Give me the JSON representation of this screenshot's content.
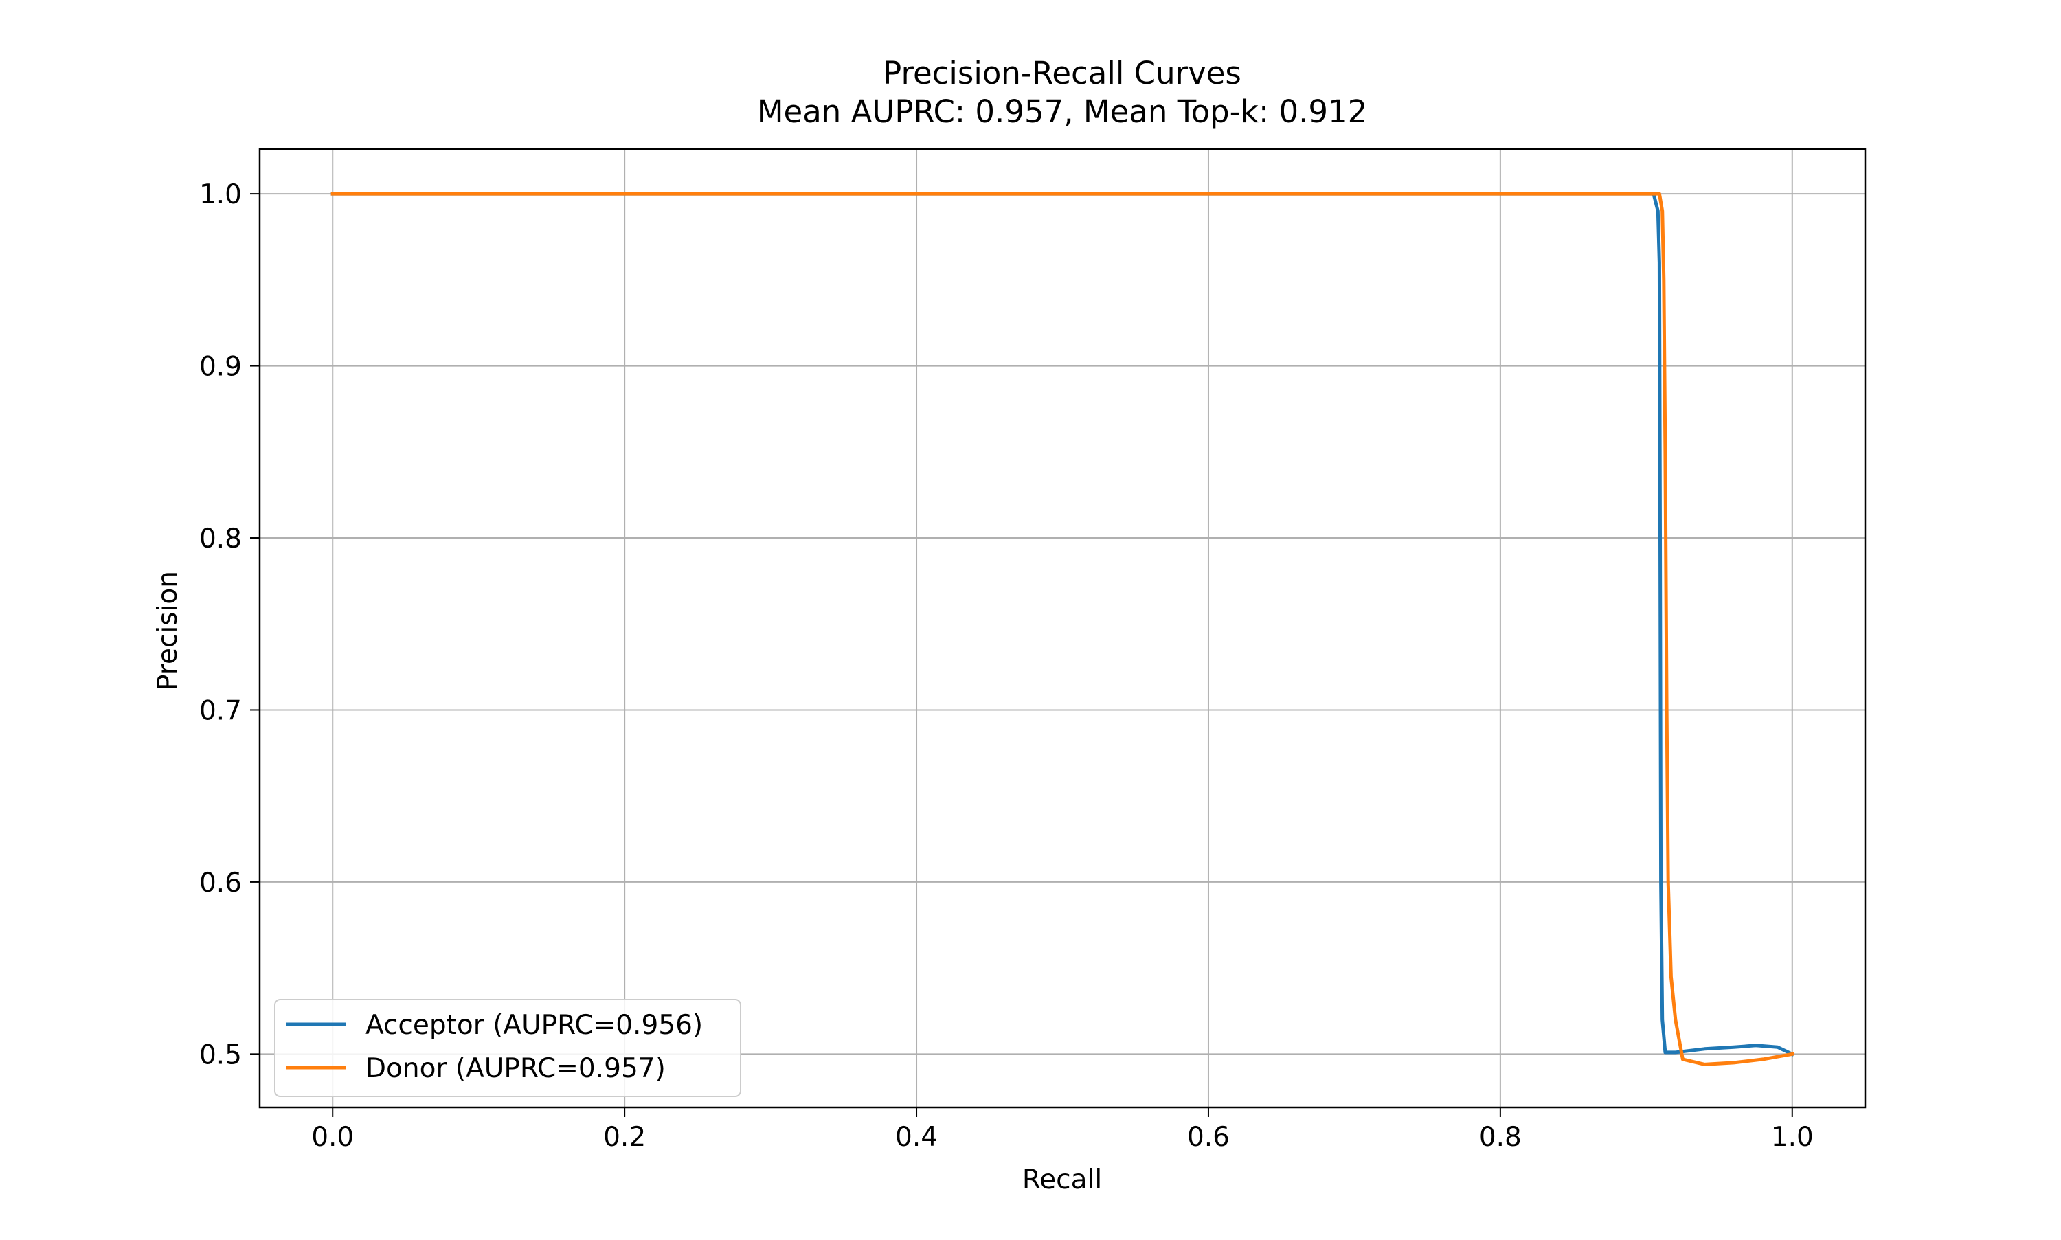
{
  "chart_data": {
    "type": "line",
    "title": "Precision-Recall Curves",
    "subtitle": "Mean AUPRC: 0.957, Mean Top-k: 0.912",
    "xlabel": "Recall",
    "ylabel": "Precision",
    "xlim": [
      -0.05,
      1.05
    ],
    "ylim": [
      0.469,
      1.026
    ],
    "xticks": [
      0.0,
      0.2,
      0.4,
      0.6,
      0.8,
      1.0
    ],
    "xtick_labels": [
      "0.0",
      "0.2",
      "0.4",
      "0.6",
      "0.8",
      "1.0"
    ],
    "yticks": [
      0.5,
      0.6,
      0.7,
      0.8,
      0.9,
      1.0
    ],
    "ytick_labels": [
      "0.5",
      "0.6",
      "0.7",
      "0.8",
      "0.9",
      "1.0"
    ],
    "grid": true,
    "legend_position": "lower-left",
    "series": [
      {
        "name": "Acceptor (AUPRC=0.956)",
        "color": "#1f77b4",
        "x": [
          0.0,
          0.2,
          0.4,
          0.6,
          0.8,
          0.905,
          0.908,
          0.909,
          0.9095,
          0.91,
          0.911,
          0.913,
          0.92,
          0.94,
          0.96,
          0.975,
          0.99,
          1.0
        ],
        "y": [
          1.0,
          1.0,
          1.0,
          1.0,
          1.0,
          1.0,
          0.99,
          0.96,
          0.8,
          0.6,
          0.52,
          0.501,
          0.501,
          0.503,
          0.504,
          0.505,
          0.504,
          0.5
        ]
      },
      {
        "name": "Donor (AUPRC=0.957)",
        "color": "#ff7f0e",
        "x": [
          0.0,
          0.2,
          0.4,
          0.6,
          0.8,
          0.909,
          0.911,
          0.912,
          0.913,
          0.914,
          0.915,
          0.917,
          0.92,
          0.925,
          0.94,
          0.96,
          0.98,
          1.0
        ],
        "y": [
          1.0,
          1.0,
          1.0,
          1.0,
          1.0,
          1.0,
          0.99,
          0.95,
          0.85,
          0.7,
          0.6,
          0.545,
          0.52,
          0.497,
          0.494,
          0.495,
          0.497,
          0.5
        ]
      }
    ]
  }
}
